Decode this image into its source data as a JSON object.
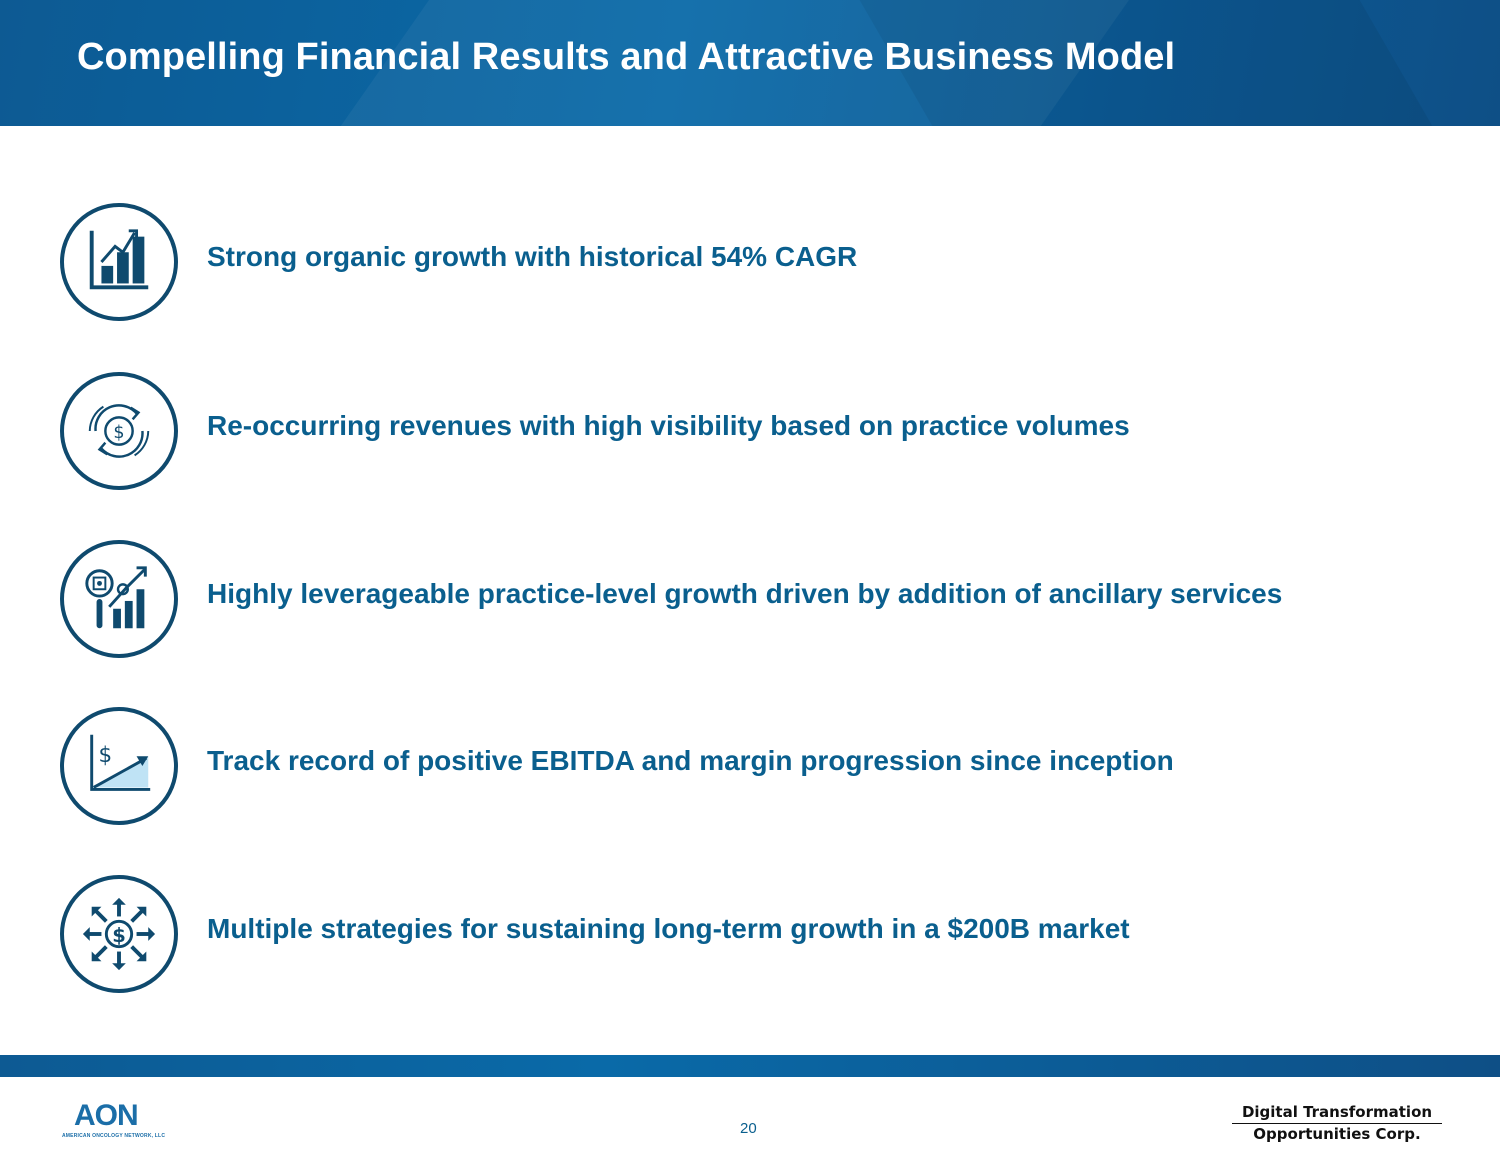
{
  "header": {
    "title": "Compelling Financial Results and Attractive Business Model"
  },
  "items": [
    {
      "icon": "bar-chart-growth-icon",
      "text": "Strong organic growth with historical 54% CAGR"
    },
    {
      "icon": "recurring-revenue-icon",
      "text": "Re-occurring revenues with high visibility based on practice volumes"
    },
    {
      "icon": "leverage-growth-icon",
      "text": "Highly leverageable practice-level growth driven by addition of ancillary services"
    },
    {
      "icon": "ebitda-progression-icon",
      "text": "Track record of positive EBITDA and margin progression since inception"
    },
    {
      "icon": "multiple-strategies-icon",
      "text": "Multiple strategies for sustaining long-term growth in a $200B market"
    }
  ],
  "footer": {
    "aon_mark": "AON",
    "aon_subtitle": "AMERICAN ONCOLOGY NETWORK, LLC",
    "page_number": "20",
    "dto_line1": "Digital Transformation",
    "dto_line2": "Opportunities Corp."
  },
  "colors": {
    "header_blue": "#0a6aa8",
    "text_blue": "#0a5f8e",
    "icon_navy": "#0f4a6e"
  }
}
